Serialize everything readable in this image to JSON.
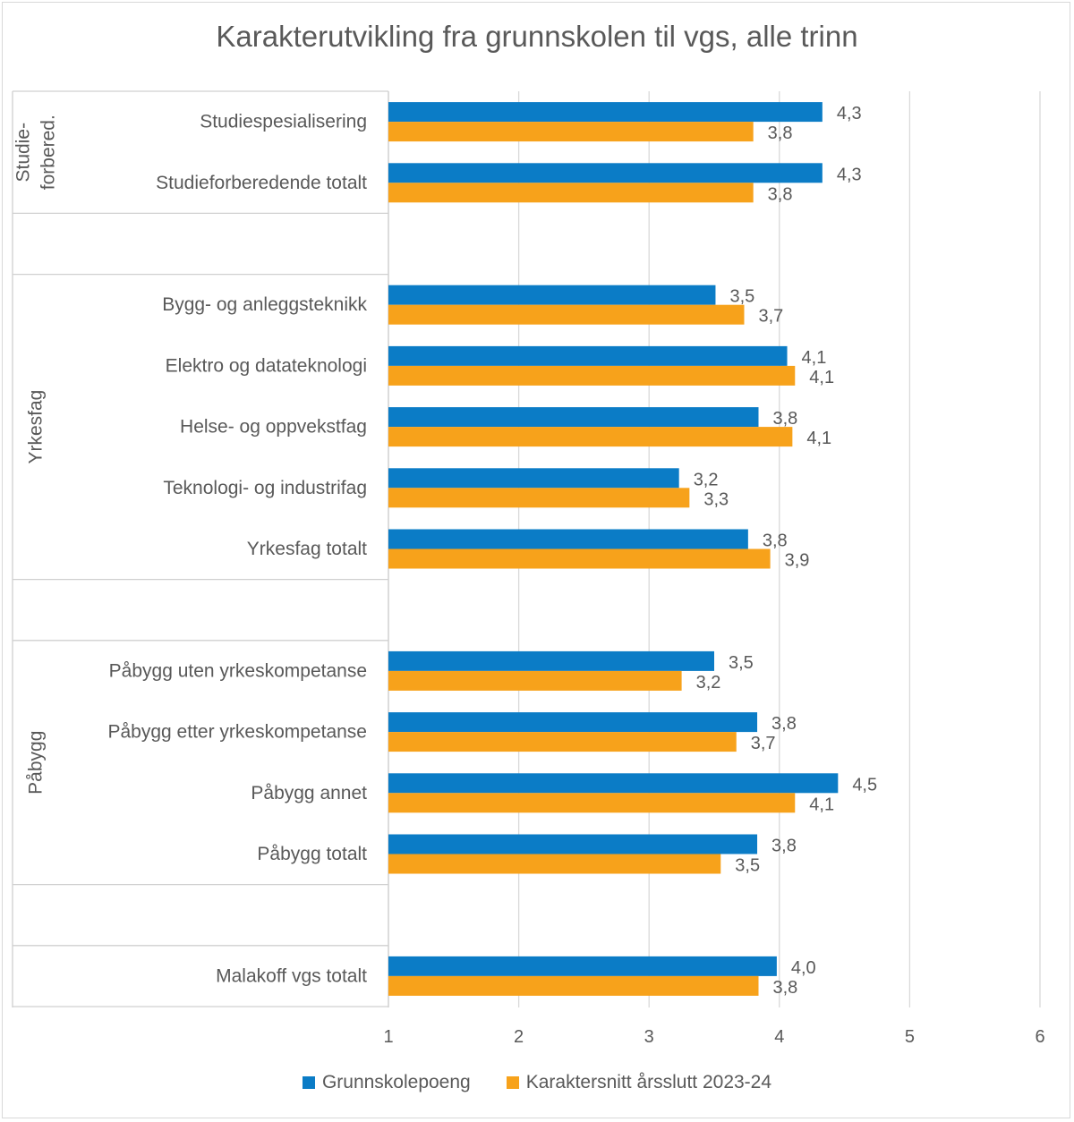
{
  "chart_data": {
    "type": "bar",
    "orientation": "horizontal",
    "title": "Karakterutvikling fra grunnskolen til vgs, alle trinn",
    "xlim": [
      1,
      6
    ],
    "xticks": [
      "1",
      "2",
      "3",
      "4",
      "5",
      "6"
    ],
    "grid": true,
    "legend_position": "bottom",
    "groups": [
      {
        "label": "Studie-\nforbered.",
        "categories": [
          "Studiespesialisering",
          "Studieforberedende totalt"
        ]
      },
      {
        "label": "Yrkesfag",
        "categories": [
          "Bygg- og anleggsteknikk",
          "Elektro og datateknologi",
          "Helse- og oppvekstfag",
          "Teknologi- og industrifag",
          "Yrkesfag totalt"
        ]
      },
      {
        "label": "Påbygg",
        "categories": [
          "Påbygg uten yrkeskompetanse",
          "Påbygg etter yrkeskompetanse",
          "Påbygg annet",
          "Påbygg totalt"
        ]
      },
      {
        "label": "",
        "categories": [
          "Malakoff vgs totalt"
        ]
      }
    ],
    "series": [
      {
        "name": "Grunnskolepoeng",
        "color": "#0b7cc6",
        "values": [
          4.33,
          4.33,
          3.51,
          4.06,
          3.84,
          3.23,
          3.76,
          3.5,
          3.83,
          4.45,
          3.83,
          3.98
        ],
        "labels": [
          "4,3",
          "4,3",
          "3,5",
          "4,1",
          "3,8",
          "3,2",
          "3,8",
          "3,5",
          "3,8",
          "4,5",
          "3,8",
          "4,0"
        ]
      },
      {
        "name": "Karaktersnitt årsslutt 2023-24",
        "color": "#f7a21b",
        "values": [
          3.8,
          3.8,
          3.73,
          4.12,
          4.1,
          3.31,
          3.93,
          3.25,
          3.67,
          4.12,
          3.55,
          3.84
        ],
        "labels": [
          "3,8",
          "3,8",
          "3,7",
          "4,1",
          "4,1",
          "3,3",
          "3,9",
          "3,2",
          "3,7",
          "4,1",
          "3,5",
          "3,8"
        ]
      }
    ]
  }
}
